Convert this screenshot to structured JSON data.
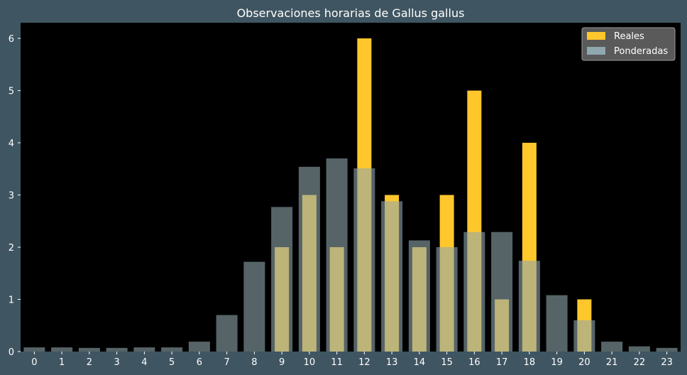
{
  "chart_data": {
    "type": "bar",
    "title": "Observaciones horarias de Gallus gallus",
    "xlabel": "",
    "ylabel": "",
    "categories": [
      "0",
      "1",
      "2",
      "3",
      "4",
      "5",
      "6",
      "7",
      "8",
      "9",
      "10",
      "11",
      "12",
      "13",
      "14",
      "15",
      "16",
      "17",
      "18",
      "19",
      "20",
      "21",
      "22",
      "23"
    ],
    "series": [
      {
        "name": "Reales",
        "color": "#ffc72c",
        "values": [
          0,
          0,
          0,
          0,
          0,
          0,
          0,
          0,
          0,
          2,
          3,
          2,
          6,
          3,
          2,
          3,
          5,
          1,
          4,
          0,
          1,
          0,
          0,
          0
        ]
      },
      {
        "name": "Ponderadas",
        "color": "#8fa7ae",
        "values": [
          0.08,
          0.08,
          0.07,
          0.07,
          0.08,
          0.08,
          0.19,
          0.7,
          1.72,
          2.77,
          3.54,
          3.7,
          3.51,
          2.88,
          2.13,
          2.0,
          2.29,
          2.29,
          1.74,
          1.08,
          0.6,
          0.19,
          0.1,
          0.07
        ]
      }
    ],
    "yticks": [
      0,
      1,
      2,
      3,
      4,
      5,
      6
    ],
    "ylim": [
      0,
      6.3
    ],
    "grid": false,
    "legend_position": "top-right"
  }
}
